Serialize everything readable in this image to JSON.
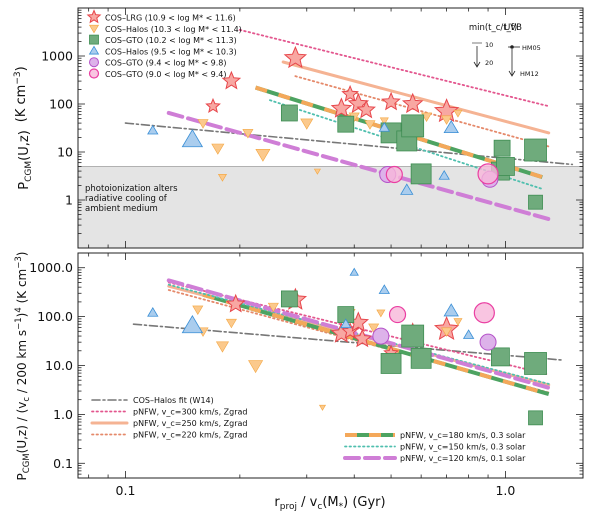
{
  "colors": {
    "lrg": "#e7464b",
    "lrg_fill": "#f8a7a2",
    "halos_hi": "#f4a640",
    "halos_hi_fill": "#fbc98c",
    "gto_hi": "#3e8d52",
    "gto_hi_fill": "#6fab7c",
    "halos_lo": "#3a8fd6",
    "halos_lo_fill": "#aacdee",
    "gto_mid": "#b552c9",
    "gto_mid_fill": "#ddb2ea",
    "gto_lo": "#ea3fa2",
    "gto_lo_fill": "#f7b7da",
    "fit": "#777777",
    "p300": "#e3568e",
    "p250": "#f5b393",
    "p220": "#e5896a",
    "p180a": "#f4a85a",
    "p180b": "#4da361",
    "p150": "#4fbfae",
    "p120": "#cf7ed6",
    "shade": "#e4e4e4"
  },
  "chart_data": [
    {
      "type": "scatter",
      "name": "top",
      "ylabel": "P_CGM(U,z)  (K cm^-3)",
      "ylabel_main": "P",
      "ylabel_sub": "CGM",
      "ylabel_rest": "(U,z)",
      "ylabel_units": "(K cm",
      "ylabel_exp": "−3",
      "ylabel_close": ")",
      "xlim": [
        0.075,
        1.6
      ],
      "ylim": [
        0.1,
        10000
      ],
      "log_x": true,
      "log_y": true,
      "yticks": [
        {
          "v": 1,
          "label": "1"
        },
        {
          "v": 10,
          "label": "10"
        },
        {
          "v": 100,
          "label": "100"
        },
        {
          "v": 1000,
          "label": "1000"
        }
      ],
      "shaded_band": {
        "y0": 0.1,
        "y1": 5,
        "text": [
          "photoionization alters",
          "radiative cooling of",
          "ambient medium"
        ]
      },
      "inset": {
        "title": "min(t_c/t_f)",
        "uvb_label": "UVB",
        "v10": "10",
        "v20": "20",
        "hm05": "HM05",
        "hm12": "HM12"
      },
      "legend": [
        {
          "key": "lrg",
          "marker": "star",
          "label": "COS–LRG (10.9 < log M* < 11.6)"
        },
        {
          "key": "halos_hi",
          "marker": "tri-down",
          "label": "COS–Halos (10.3 < log M* < 11.4)"
        },
        {
          "key": "gto_hi",
          "marker": "square",
          "label": "COS–GTO (10.2 < log M* < 11.3)"
        },
        {
          "key": "halos_lo",
          "marker": "tri-up",
          "label": "COS–Halos (9.5 < log M* < 10.3)"
        },
        {
          "key": "gto_mid",
          "marker": "circle",
          "label": "COS–GTO (9.4 < log M* < 9.8)"
        },
        {
          "key": "gto_lo",
          "marker": "circle-open",
          "label": "COS–GTO (9.0 < log M* < 9.4)"
        }
      ],
      "series": [
        {
          "key": "lrg",
          "marker": "star",
          "points": [
            [
              0.17,
              90,
              7
            ],
            [
              0.19,
              300,
              9
            ],
            [
              0.28,
              900,
              11
            ],
            [
              0.37,
              80,
              10
            ],
            [
              0.39,
              160,
              8
            ],
            [
              0.41,
              100,
              10
            ],
            [
              0.43,
              75,
              9
            ],
            [
              0.5,
              110,
              9
            ],
            [
              0.57,
              100,
              10
            ],
            [
              0.7,
              70,
              12
            ]
          ]
        },
        {
          "key": "halos_hi",
          "marker": "tri-down",
          "points": [
            [
              0.16,
              40,
              5
            ],
            [
              0.175,
              12,
              6
            ],
            [
              0.18,
              3,
              4
            ],
            [
              0.21,
              25,
              5
            ],
            [
              0.23,
              9,
              7
            ],
            [
              0.3,
              40,
              6
            ],
            [
              0.32,
              4,
              3
            ],
            [
              0.4,
              55,
              5
            ],
            [
              0.44,
              38,
              5
            ],
            [
              0.48,
              45,
              4
            ],
            [
              0.62,
              55,
              5
            ],
            [
              0.7,
              48,
              5
            ],
            [
              0.75,
              65,
              4
            ]
          ]
        },
        {
          "key": "gto_hi",
          "marker": "square",
          "points": [
            [
              0.27,
              65,
              8
            ],
            [
              0.38,
              38,
              8
            ],
            [
              0.5,
              25,
              10
            ],
            [
              0.55,
              17,
              10
            ],
            [
              0.57,
              35,
              11
            ],
            [
              0.6,
              3.5,
              10
            ],
            [
              0.97,
              4,
              9
            ],
            [
              0.98,
              12,
              8
            ],
            [
              1.0,
              5,
              9
            ],
            [
              1.2,
              11,
              11
            ],
            [
              1.2,
              0.9,
              7
            ]
          ]
        },
        {
          "key": "halos_lo",
          "marker": "tri-up",
          "points": [
            [
              0.118,
              28,
              5
            ],
            [
              0.15,
              18,
              10
            ],
            [
              0.55,
              1.6,
              6
            ],
            [
              0.69,
              3.2,
              5
            ],
            [
              0.72,
              32,
              7
            ],
            [
              0.48,
              32,
              5
            ]
          ]
        },
        {
          "key": "gto_mid",
          "marker": "circle",
          "points": [
            [
              0.49,
              3.4,
              8
            ],
            [
              0.91,
              2.7,
              8
            ]
          ]
        },
        {
          "key": "gto_lo",
          "marker": "circle-open",
          "points": [
            [
              0.51,
              3.4,
              8
            ],
            [
              0.9,
              3.5,
              10
            ]
          ]
        }
      ],
      "lines": [
        {
          "key": "fit",
          "style": "dashdot",
          "pts": [
            [
              0.1,
              40
            ],
            [
              1.5,
              5.5
            ]
          ]
        },
        {
          "key": "p300",
          "style": "dotted",
          "pts": [
            [
              0.2,
              3500
            ],
            [
              1.3,
              90
            ]
          ]
        },
        {
          "key": "p250",
          "style": "solid",
          "pts": [
            [
              0.26,
              750
            ],
            [
              1.3,
              25
            ]
          ]
        },
        {
          "key": "p220",
          "style": "dotted",
          "pts": [
            [
              0.28,
              380
            ],
            [
              1.3,
              13
            ]
          ]
        },
        {
          "key": "p180",
          "style": "dashed2",
          "pts": [
            [
              0.22,
              220
            ],
            [
              1.25,
              3
            ]
          ]
        },
        {
          "key": "p150",
          "style": "dotted",
          "pts": [
            [
              0.24,
              120
            ],
            [
              1.25,
              1.7
            ]
          ]
        },
        {
          "key": "p120",
          "style": "dashed",
          "pts": [
            [
              0.13,
              65
            ],
            [
              1.3,
              0.4
            ]
          ]
        }
      ]
    },
    {
      "type": "scatter",
      "name": "bottom",
      "ylabel": "P_CGM(U,z) / (v_c / 200 km s^-1)^4  (K cm^-3)",
      "ylabel_main": "P",
      "ylabel_sub": "CGM",
      "ylabel_rest": "(U,z) / (v",
      "ylabel_sub2": "c",
      "ylabel_rest2": " / 200 km s",
      "ylabel_exp2": "−1",
      "ylabel_rest3": ")",
      "ylabel_exp3": "4",
      "ylabel_units": "  (K cm",
      "ylabel_exp": "−3",
      "ylabel_close": ")",
      "xlabel_main": "r",
      "xlabel_sub": "proj",
      "xlabel_rest": " / v",
      "xlabel_sub2": "c",
      "xlabel_rest2": "(M",
      "xlabel_sub3": "*",
      "xlabel_rest3": ")    (Gyr)",
      "xlim": [
        0.075,
        1.6
      ],
      "ylim": [
        0.05,
        2000
      ],
      "log_x": true,
      "log_y": true,
      "xticks": [
        {
          "v": 0.1,
          "label": "0.1"
        },
        {
          "v": 1,
          "label": "1.0"
        }
      ],
      "yticks": [
        {
          "v": 0.1,
          "label": "0.1"
        },
        {
          "v": 1,
          "label": "1.0"
        },
        {
          "v": 10,
          "label": "10.0"
        },
        {
          "v": 100,
          "label": "100.0"
        },
        {
          "v": 1000,
          "label": "1000.0"
        }
      ],
      "legend_left": [
        {
          "key": "fit",
          "style": "dashdot",
          "label": "COS–Halos fit (W14)"
        },
        {
          "key": "p300",
          "style": "dotted",
          "label": "pNFW, v_c=300 km/s, Zgrad"
        },
        {
          "key": "p250",
          "style": "solid",
          "label": "pNFW, v_c=250 km/s, Zgrad"
        },
        {
          "key": "p220",
          "style": "dotted",
          "label": "pNFW, v_c=220 km/s, Zgrad"
        }
      ],
      "legend_right": [
        {
          "key": "p180",
          "style": "dashed2",
          "label": "pNFW, v_c=180 km/s, 0.3 solar"
        },
        {
          "key": "p150",
          "style": "dotted",
          "label": "pNFW, v_c=150 km/s, 0.3 solar"
        },
        {
          "key": "p120",
          "style": "dashed",
          "label": "pNFW, v_c=120 km/s, 0.1 solar"
        }
      ],
      "series": [
        {
          "key": "lrg",
          "marker": "star",
          "points": [
            [
              0.195,
              180,
              9
            ],
            [
              0.28,
              220,
              11
            ],
            [
              0.37,
              45,
              10
            ],
            [
              0.39,
              50,
              8
            ],
            [
              0.41,
              75,
              10
            ],
            [
              0.42,
              35,
              9
            ],
            [
              0.5,
              18,
              7
            ],
            [
              0.57,
              45,
              10
            ],
            [
              0.7,
              55,
              12
            ]
          ]
        },
        {
          "key": "halos_hi",
          "marker": "tri-down",
          "points": [
            [
              0.155,
              140,
              5
            ],
            [
              0.16,
              50,
              5
            ],
            [
              0.18,
              25,
              6
            ],
            [
              0.19,
              75,
              5
            ],
            [
              0.22,
              10,
              7
            ],
            [
              0.245,
              160,
              5
            ],
            [
              0.33,
              1.4,
              3
            ],
            [
              0.39,
              120,
              5
            ],
            [
              0.45,
              60,
              5
            ],
            [
              0.47,
              120,
              4
            ],
            [
              0.7,
              50,
              5
            ],
            [
              0.75,
              80,
              4
            ]
          ]
        },
        {
          "key": "gto_hi",
          "marker": "square",
          "points": [
            [
              0.27,
              230,
              8
            ],
            [
              0.38,
              110,
              8
            ],
            [
              0.5,
              11,
              10
            ],
            [
              0.57,
              40,
              11
            ],
            [
              0.6,
              14,
              10
            ],
            [
              0.97,
              15,
              9
            ],
            [
              1.2,
              11,
              11
            ],
            [
              1.2,
              0.85,
              7
            ]
          ]
        },
        {
          "key": "halos_lo",
          "marker": "tri-up",
          "points": [
            [
              0.118,
              120,
              5
            ],
            [
              0.15,
              65,
              10
            ],
            [
              0.4,
              800,
              4
            ],
            [
              0.48,
              350,
              5
            ],
            [
              0.72,
              130,
              7
            ],
            [
              0.8,
              42,
              5
            ],
            [
              0.38,
              70,
              5
            ]
          ]
        },
        {
          "key": "gto_mid",
          "marker": "circle",
          "points": [
            [
              0.47,
              40,
              8
            ],
            [
              0.9,
              30,
              8
            ]
          ]
        },
        {
          "key": "gto_lo",
          "marker": "circle-open",
          "points": [
            [
              0.52,
              110,
              8
            ],
            [
              0.88,
              120,
              10
            ]
          ]
        }
      ],
      "lines": [
        {
          "key": "fit",
          "style": "dashdot",
          "pts": [
            [
              0.105,
              70
            ],
            [
              1.4,
              13
            ]
          ]
        },
        {
          "key": "p300",
          "style": "dotted",
          "pts": [
            [
              0.13,
              500
            ],
            [
              1.3,
              6.5
            ]
          ]
        },
        {
          "key": "p250",
          "style": "solid",
          "pts": [
            [
              0.13,
              420
            ],
            [
              1.3,
              4
            ]
          ]
        },
        {
          "key": "p220",
          "style": "dotted",
          "pts": [
            [
              0.13,
              350
            ],
            [
              1.3,
              2.8
            ]
          ]
        },
        {
          "key": "p180",
          "style": "dashed2",
          "pts": [
            [
              0.16,
              280
            ],
            [
              1.3,
              2.6
            ]
          ]
        },
        {
          "key": "p150",
          "style": "dotted",
          "pts": [
            [
              0.13,
              450
            ],
            [
              1.3,
              4.2
            ]
          ]
        },
        {
          "key": "p120",
          "style": "dashed",
          "pts": [
            [
              0.13,
              550
            ],
            [
              1.3,
              3.5
            ]
          ]
        }
      ]
    }
  ]
}
